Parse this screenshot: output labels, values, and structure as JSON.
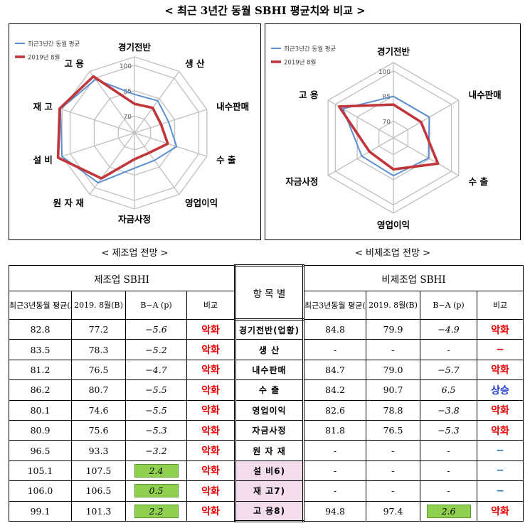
{
  "page": {
    "title": "< 최근 3년간 동월 SBHI 평균치와 비교 >",
    "caption_left": "< 제조업 전망 >",
    "caption_right": "< 비제조업 전망 >"
  },
  "colors": {
    "avg": "#5b8fd1",
    "current": "#c0363b",
    "grid": "#bfbfbf",
    "worse": "#e60000",
    "rise": "#1f3fd0",
    "dash": "#2e75b6",
    "highlight": "#8fd14f",
    "item_bg": "#f4dcef"
  },
  "chart_data": [
    {
      "type": "radar",
      "title": "",
      "axes": [
        "경기전반",
        "생 산",
        "내수판매",
        "수 출",
        "영업이익",
        "자금사정",
        "원 자 재",
        "설 비",
        "재 고",
        "고 용"
      ],
      "ticks": [
        70,
        85,
        100
      ],
      "range": [
        60,
        105
      ],
      "series": [
        {
          "name": "최근3년간 동월 평균",
          "values": [
            82.8,
            83.5,
            81.2,
            86.2,
            80.1,
            80.9,
            96.5,
            105.1,
            106.0,
            99.1
          ]
        },
        {
          "name": "2019년 8월",
          "values": [
            77.2,
            78.3,
            76.5,
            80.7,
            74.6,
            75.6,
            93.3,
            107.5,
            106.5,
            101.3
          ]
        }
      ]
    },
    {
      "type": "radar",
      "title": "",
      "axes": [
        "경기전반",
        "내수판매",
        "수 출",
        "영업이익",
        "자금사정",
        "고 용"
      ],
      "ticks": [
        70,
        85,
        100
      ],
      "range": [
        60,
        105
      ],
      "series": [
        {
          "name": "최근3년간 동월 평균",
          "values": [
            84.8,
            84.7,
            84.2,
            82.6,
            81.8,
            94.8
          ]
        },
        {
          "name": "2019년 8월",
          "values": [
            79.9,
            79.0,
            90.7,
            78.8,
            76.5,
            97.4
          ]
        }
      ]
    }
  ],
  "table": {
    "group_mfg": "제조업 SBHI",
    "group_item": "항 목 별",
    "group_nonmfg": "비제조업 SBHI",
    "col_avg": "최근3년동월 평균(A)",
    "col_avg_note_mfg": "4)",
    "col_avg_note_non": "5)",
    "col_cur": "2019. 8월(B)",
    "col_diff": "B−A (p)",
    "col_cmp": "비교",
    "rows": [
      {
        "item": "경기전반(업황)",
        "m_avg": "82.8",
        "m_cur": "77.2",
        "m_diff": "−5.6",
        "m_cmp": "악화",
        "n_avg": "84.8",
        "n_cur": "79.9",
        "n_diff": "−4.9",
        "n_cmp": "악화"
      },
      {
        "item": "생 산",
        "m_avg": "83.5",
        "m_cur": "78.3",
        "m_diff": "−5.2",
        "m_cmp": "악화",
        "n_avg": "-",
        "n_cur": "-",
        "n_diff": "-",
        "n_cmp": "−"
      },
      {
        "item": "내수판매",
        "m_avg": "81.2",
        "m_cur": "76.5",
        "m_diff": "−4.7",
        "m_cmp": "악화",
        "n_avg": "84.7",
        "n_cur": "79.0",
        "n_diff": "−5.7",
        "n_cmp": "악화"
      },
      {
        "item": "수 출",
        "m_avg": "86.2",
        "m_cur": "80.7",
        "m_diff": "−5.5",
        "m_cmp": "악화",
        "n_avg": "84.2",
        "n_cur": "90.7",
        "n_diff": "6.5",
        "n_cmp": "상승"
      },
      {
        "item": "영업이익",
        "m_avg": "80.1",
        "m_cur": "74.6",
        "m_diff": "−5.5",
        "m_cmp": "악화",
        "n_avg": "82.6",
        "n_cur": "78.8",
        "n_diff": "−3.8",
        "n_cmp": "악화"
      },
      {
        "item": "자금사정",
        "m_avg": "80.9",
        "m_cur": "75.6",
        "m_diff": "−5.3",
        "m_cmp": "악화",
        "n_avg": "81.8",
        "n_cur": "76.5",
        "n_diff": "−5.3",
        "n_cmp": "악화"
      },
      {
        "item": "원 자 재",
        "m_avg": "96.5",
        "m_cur": "93.3",
        "m_diff": "−3.2",
        "m_cmp": "악화",
        "n_avg": "-",
        "n_cur": "-",
        "n_diff": "-",
        "n_cmp": "−"
      },
      {
        "item": "설 비6)",
        "m_avg": "105.1",
        "m_cur": "107.5",
        "m_diff": "2.4",
        "m_cmp": "악화",
        "n_avg": "-",
        "n_cur": "-",
        "n_diff": "-",
        "n_cmp": "−"
      },
      {
        "item": "재 고7)",
        "m_avg": "106.0",
        "m_cur": "106.5",
        "m_diff": "0.5",
        "m_cmp": "악화",
        "n_avg": "-",
        "n_cur": "-",
        "n_diff": "-",
        "n_cmp": "−"
      },
      {
        "item": "고 용8)",
        "m_avg": "99.1",
        "m_cur": "101.3",
        "m_diff": "2.2",
        "m_cmp": "악화",
        "n_avg": "94.8",
        "n_cur": "97.4",
        "n_diff": "2.6",
        "n_cmp": "악화"
      }
    ]
  }
}
